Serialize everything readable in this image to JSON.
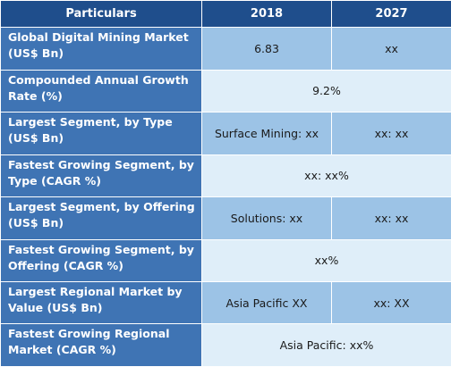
{
  "table": {
    "headers": [
      "Particulars",
      "2018",
      "2027"
    ],
    "rows": [
      {
        "label": "Global Digital Mining Market (US$ Bn)",
        "v2018": "6.83",
        "v2027": "xx"
      },
      {
        "label": "Compounded Annual Growth Rate (%)",
        "merged": "9.2%"
      },
      {
        "label": "Largest Segment, by Type (US$ Bn)",
        "v2018": "Surface Mining: xx",
        "v2027": "xx: xx"
      },
      {
        "label": "Fastest Growing Segment, by Type (CAGR %)",
        "merged": "xx:  xx%"
      },
      {
        "label": "Largest Segment, by Offering (US$ Bn)",
        "v2018": "Solutions: xx",
        "v2027": "xx: xx"
      },
      {
        "label": "Fastest Growing Segment, by Offering (CAGR %)",
        "merged": "xx%"
      },
      {
        "label": "Largest Regional Market by Value (US$ Bn)",
        "v2018": "Asia Pacific XX",
        "v2027": "xx: XX"
      },
      {
        "label": "Fastest Growing Regional Market (CAGR %)",
        "merged": "Asia Pacific: xx%"
      }
    ]
  },
  "colors": {
    "header_bg": "#1f4e8c",
    "label_bg": "#3f74b4",
    "cell_dark": "#9cc3e6",
    "cell_light": "#dfeef9"
  }
}
